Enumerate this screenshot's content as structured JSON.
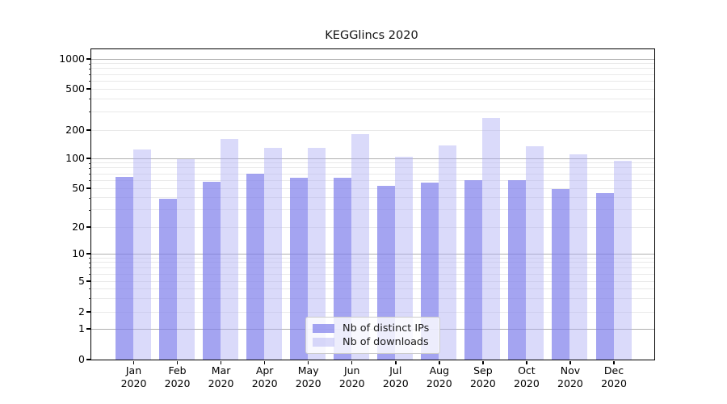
{
  "title": "KEGGlincs 2020",
  "chart_data": {
    "type": "bar",
    "title": "KEGGlincs 2020",
    "categories": [
      "Jan 2020",
      "Feb 2020",
      "Mar 2020",
      "Apr 2020",
      "May 2020",
      "Jun 2020",
      "Jul 2020",
      "Aug 2020",
      "Sep 2020",
      "Oct 2020",
      "Nov 2020",
      "Dec 2020"
    ],
    "series": [
      {
        "name": "Nb of distinct IPs",
        "color": "rgba(126,126,235,0.7)",
        "values": [
          65,
          39,
          58,
          70,
          63,
          63,
          52,
          57,
          60,
          60,
          49,
          44
        ]
      },
      {
        "name": "Nb of downloads",
        "color": "rgba(173,173,244,0.45)",
        "values": [
          122,
          97,
          158,
          129,
          127,
          178,
          104,
          137,
          260,
          132,
          110,
          93
        ]
      }
    ],
    "xlabel": "",
    "ylabel": "",
    "yscale": "symlog",
    "yticks": [
      0,
      1,
      2,
      5,
      10,
      20,
      50,
      100,
      200,
      500,
      1000
    ],
    "ylim": [
      0,
      1300
    ],
    "grid": true,
    "legend_position": "lower center"
  }
}
